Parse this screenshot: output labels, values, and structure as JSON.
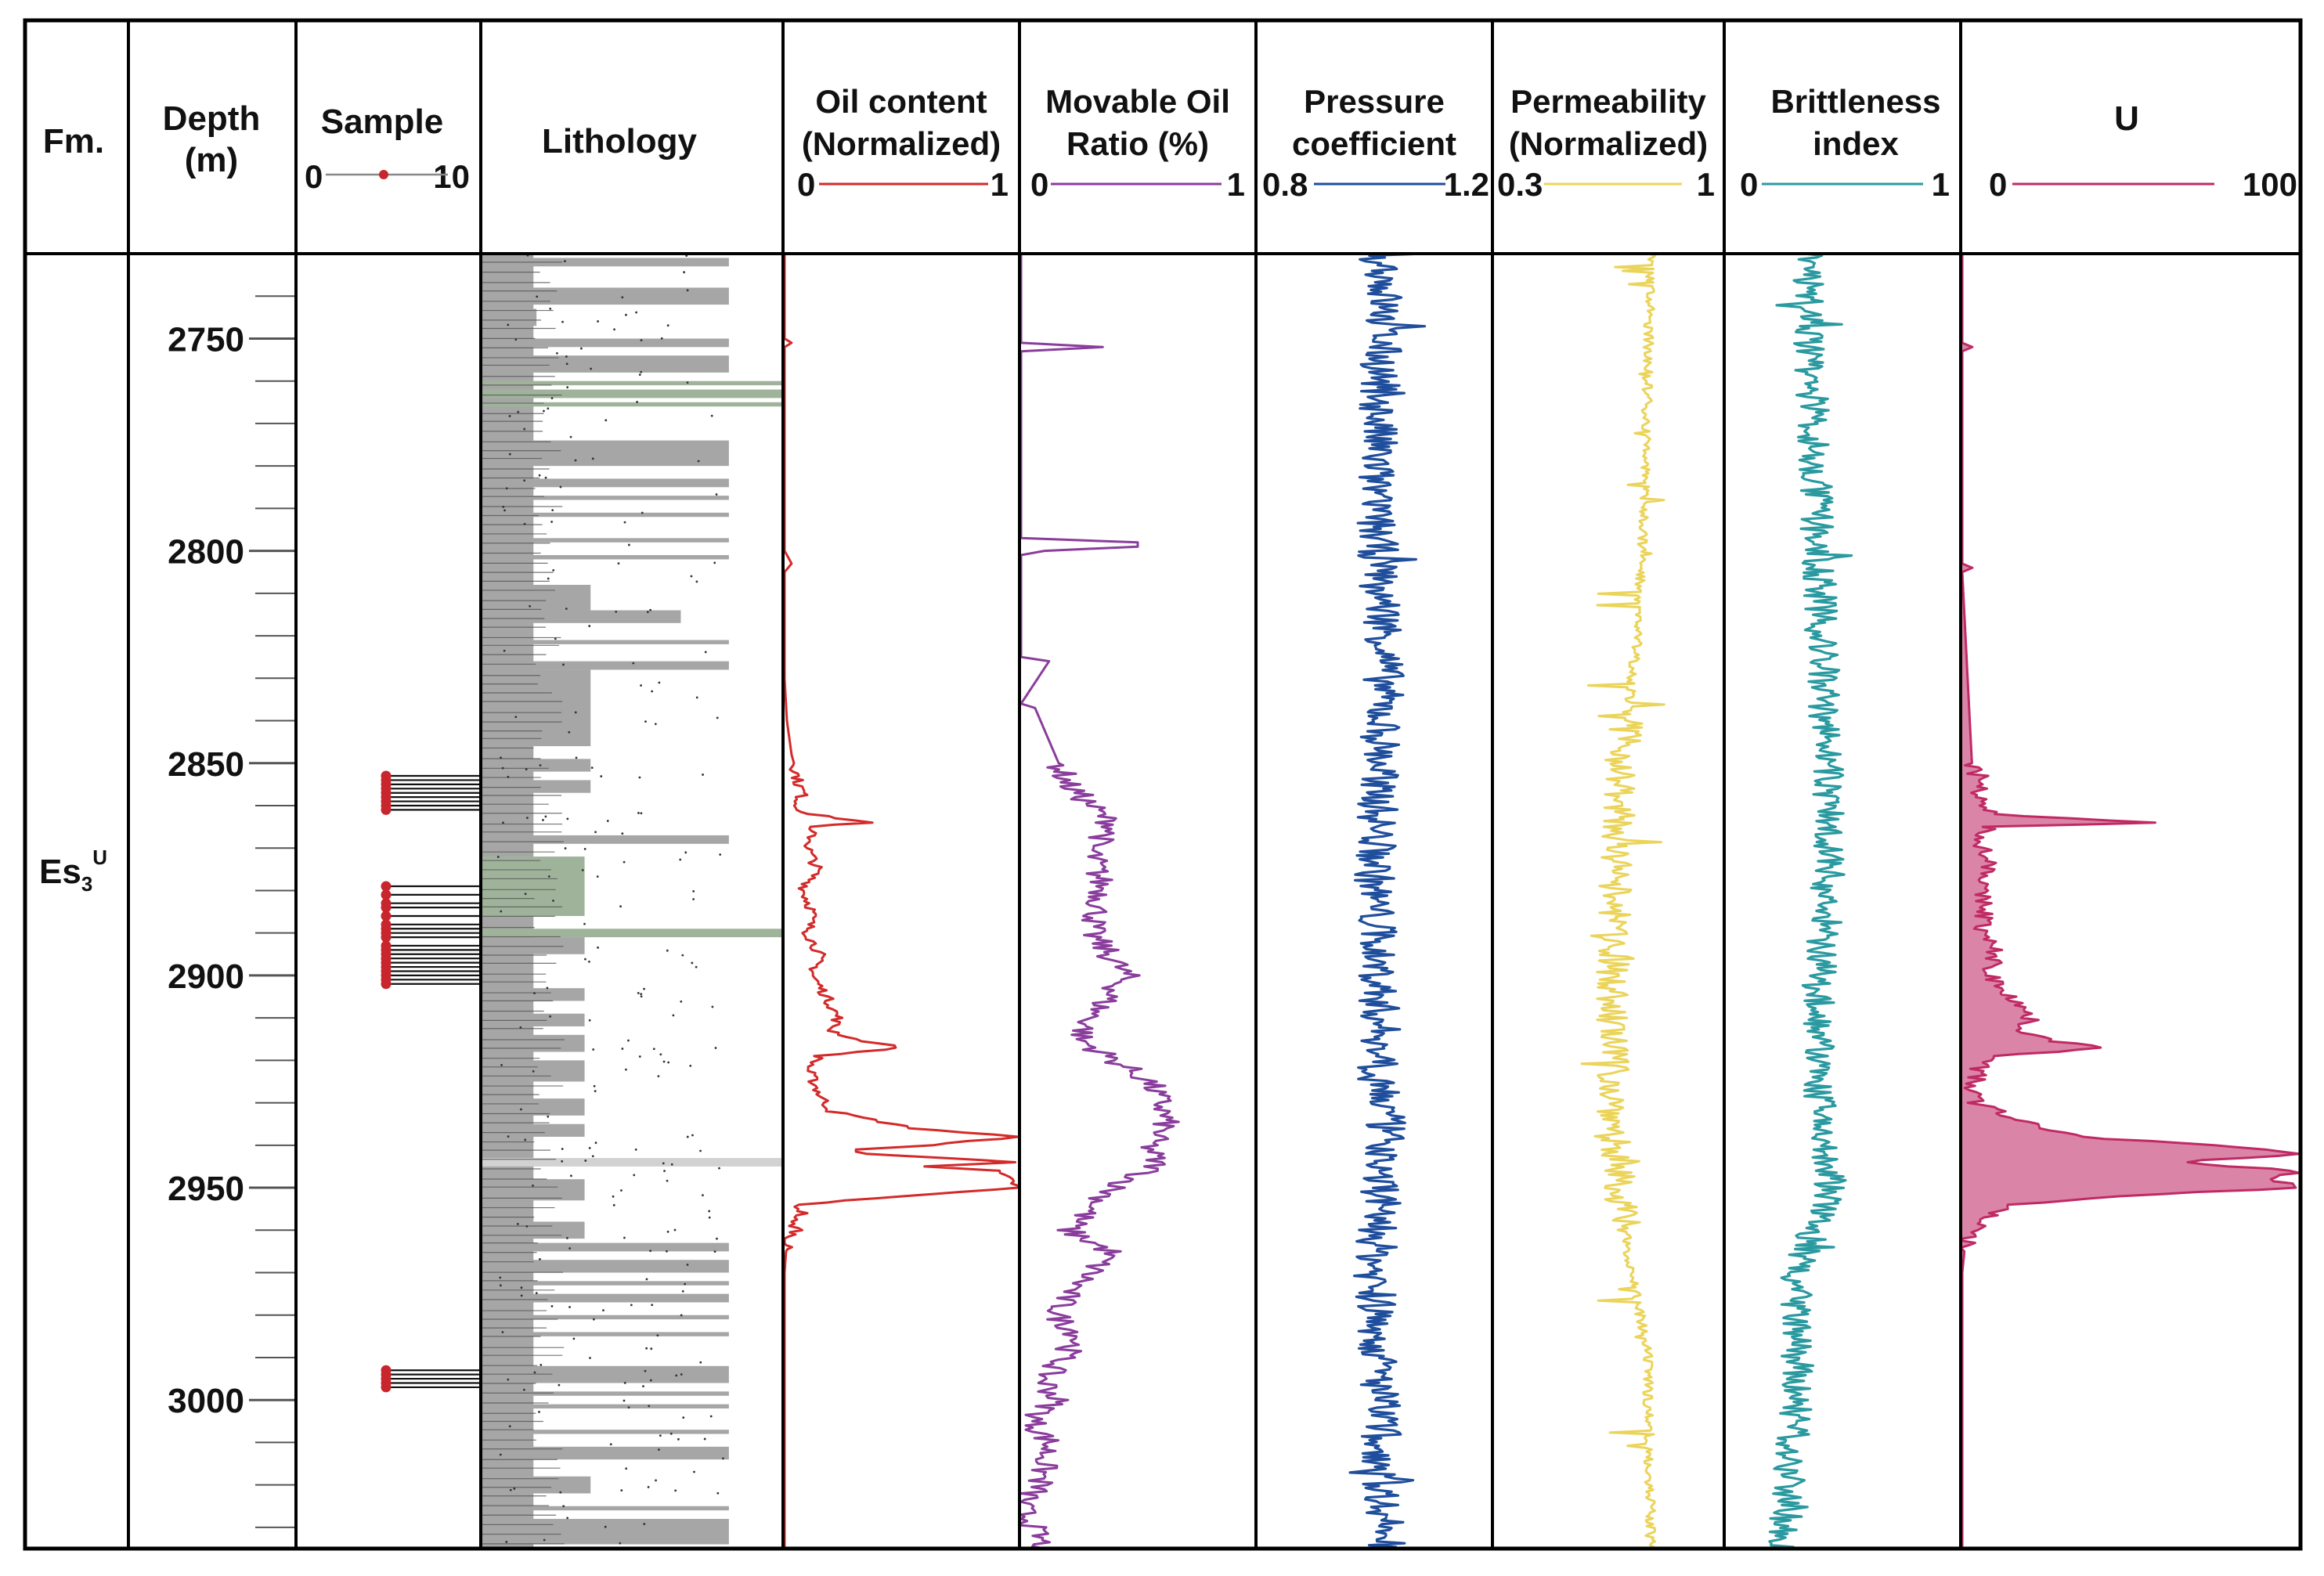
{
  "chart_data": {
    "type": "line",
    "title": "",
    "layout": "well-log",
    "depth_axis": {
      "label_line1": "Depth",
      "label_line2": "(m)",
      "range": [
        2730,
        3035
      ],
      "major_ticks": [
        2750,
        2800,
        2850,
        2900,
        2950,
        3000
      ],
      "major_tick_labels": [
        "2750",
        "2800",
        "2850",
        "2900",
        "2950",
        "3000"
      ],
      "minor_step": 10
    },
    "formation": {
      "header": "Fm.",
      "name": "Es",
      "subscript": "3",
      "superscript": "U"
    },
    "sample_track": {
      "header": "Sample",
      "scale_min": "0",
      "scale_max": "10",
      "marker_color": "#c8262c",
      "depths": [
        2853,
        2854,
        2855,
        2856,
        2857,
        2858,
        2859,
        2860,
        2861,
        2879,
        2881,
        2883,
        2884,
        2886,
        2888,
        2889,
        2890,
        2891,
        2893,
        2894,
        2895,
        2896,
        2897,
        2898,
        2899,
        2900,
        2901,
        2902,
        2993,
        2994,
        2995,
        2996,
        2997
      ]
    },
    "lithology_track": {
      "header": "Lithology",
      "fill_color": "#a6a6a6",
      "green_color": "#9fb39b",
      "intervals": [
        {
          "top": 2731,
          "base": 2733,
          "w": 0.82,
          "kind": "shale"
        },
        {
          "top": 2738,
          "base": 2742,
          "w": 0.82,
          "kind": "shale"
        },
        {
          "top": 2743,
          "base": 2747,
          "w": 0.18,
          "kind": "silt"
        },
        {
          "top": 2750,
          "base": 2752,
          "w": 0.82,
          "kind": "shale"
        },
        {
          "top": 2754,
          "base": 2758,
          "w": 0.82,
          "kind": "shale"
        },
        {
          "top": 2760,
          "base": 2761,
          "w": 1.0,
          "kind": "green"
        },
        {
          "top": 2762,
          "base": 2764,
          "w": 1.0,
          "kind": "green"
        },
        {
          "top": 2765,
          "base": 2766,
          "w": 1.0,
          "kind": "green"
        },
        {
          "top": 2774,
          "base": 2780,
          "w": 0.82,
          "kind": "shale"
        },
        {
          "top": 2783,
          "base": 2785,
          "w": 0.82,
          "kind": "shale"
        },
        {
          "top": 2787,
          "base": 2788,
          "w": 0.82,
          "kind": "shale"
        },
        {
          "top": 2791,
          "base": 2792,
          "w": 0.82,
          "kind": "shale"
        },
        {
          "top": 2797,
          "base": 2798,
          "w": 0.82,
          "kind": "shale"
        },
        {
          "top": 2801,
          "base": 2802,
          "w": 0.82,
          "kind": "shale"
        },
        {
          "top": 2808,
          "base": 2814,
          "w": 0.36,
          "kind": "shale"
        },
        {
          "top": 2814,
          "base": 2817,
          "w": 0.66,
          "kind": "shale"
        },
        {
          "top": 2821,
          "base": 2822,
          "w": 0.82,
          "kind": "shale"
        },
        {
          "top": 2826,
          "base": 2828,
          "w": 0.82,
          "kind": "shale"
        },
        {
          "top": 2828,
          "base": 2846,
          "w": 0.36,
          "kind": "shale"
        },
        {
          "top": 2849,
          "base": 2852,
          "w": 0.36,
          "kind": "shale"
        },
        {
          "top": 2854,
          "base": 2857,
          "w": 0.36,
          "kind": "shale"
        },
        {
          "top": 2867,
          "base": 2869,
          "w": 0.82,
          "kind": "shale"
        },
        {
          "top": 2872,
          "base": 2886,
          "w": 0.34,
          "kind": "green"
        },
        {
          "top": 2889,
          "base": 2891,
          "w": 1.0,
          "kind": "green"
        },
        {
          "top": 2891,
          "base": 2895,
          "w": 0.34,
          "kind": "shale"
        },
        {
          "top": 2903,
          "base": 2906,
          "w": 0.34,
          "kind": "shale"
        },
        {
          "top": 2909,
          "base": 2912,
          "w": 0.34,
          "kind": "shale"
        },
        {
          "top": 2914,
          "base": 2918,
          "w": 0.34,
          "kind": "shale"
        },
        {
          "top": 2920,
          "base": 2925,
          "w": 0.34,
          "kind": "shale"
        },
        {
          "top": 2929,
          "base": 2933,
          "w": 0.34,
          "kind": "shale"
        },
        {
          "top": 2935,
          "base": 2938,
          "w": 0.34,
          "kind": "shale"
        },
        {
          "top": 2943,
          "base": 2945,
          "w": 1.0,
          "kind": "light"
        },
        {
          "top": 2948,
          "base": 2953,
          "w": 0.34,
          "kind": "shale"
        },
        {
          "top": 2958,
          "base": 2962,
          "w": 0.34,
          "kind": "shale"
        },
        {
          "top": 2963,
          "base": 2965,
          "w": 0.82,
          "kind": "shale"
        },
        {
          "top": 2967,
          "base": 2970,
          "w": 0.82,
          "kind": "shale"
        },
        {
          "top": 2972,
          "base": 2973,
          "w": 0.82,
          "kind": "shale"
        },
        {
          "top": 2975,
          "base": 2977,
          "w": 0.82,
          "kind": "shale"
        },
        {
          "top": 2980,
          "base": 2981,
          "w": 0.82,
          "kind": "shale"
        },
        {
          "top": 2984,
          "base": 2985,
          "w": 0.82,
          "kind": "shale"
        },
        {
          "top": 2992,
          "base": 2996,
          "w": 0.82,
          "kind": "shale"
        },
        {
          "top": 2998,
          "base": 2999,
          "w": 0.82,
          "kind": "shale"
        },
        {
          "top": 3001,
          "base": 3002,
          "w": 0.82,
          "kind": "shale"
        },
        {
          "top": 3007,
          "base": 3008,
          "w": 0.82,
          "kind": "shale"
        },
        {
          "top": 3011,
          "base": 3014,
          "w": 0.82,
          "kind": "shale"
        },
        {
          "top": 3018,
          "base": 3022,
          "w": 0.36,
          "kind": "shale"
        },
        {
          "top": 3025,
          "base": 3026,
          "w": 0.82,
          "kind": "shale"
        },
        {
          "top": 3028,
          "base": 3034,
          "w": 0.82,
          "kind": "shale"
        }
      ]
    },
    "series": [
      {
        "name_line1": "Oil content",
        "name_line2": "(Normalized)",
        "min_label": "0",
        "max_label": "1",
        "xlim": [
          0,
          1
        ],
        "color": "#d42a2a",
        "fill": false,
        "style": "oil",
        "depths": [
          2730,
          2750,
          2751,
          2752,
          2800,
          2803,
          2805,
          2815,
          2830,
          2840,
          2848,
          2852,
          2855,
          2857,
          2860,
          2862,
          2864,
          2865,
          2867,
          2870,
          2875,
          2880,
          2885,
          2890,
          2895,
          2900,
          2905,
          2910,
          2913,
          2915,
          2917,
          2919,
          2922,
          2928,
          2932,
          2936,
          2938,
          2940,
          2941,
          2942,
          2944,
          2945,
          2946,
          2948,
          2950,
          2952,
          2954,
          2956,
          2958,
          2960,
          2962,
          2970,
          2985,
          3000,
          3035
        ],
        "values": [
          0,
          0,
          0.03,
          0,
          0,
          0.03,
          0,
          0,
          0,
          0.01,
          0.03,
          0.05,
          0.06,
          0.08,
          0.05,
          0.1,
          0.37,
          0.09,
          0.12,
          0.1,
          0.14,
          0.08,
          0.12,
          0.1,
          0.15,
          0.12,
          0.18,
          0.23,
          0.2,
          0.3,
          0.5,
          0.15,
          0.1,
          0.15,
          0.2,
          0.55,
          1.0,
          0.62,
          0.3,
          0.35,
          1.0,
          0.62,
          0.9,
          0.96,
          1.0,
          0.5,
          0.05,
          0.08,
          0.02,
          0.06,
          0.01,
          0,
          0,
          0,
          0
        ]
      },
      {
        "name_line1": "Movable Oil",
        "name_line2": "Ratio  (%)",
        "min_label": "0",
        "max_label": "1",
        "xlim": [
          0,
          1
        ],
        "color": "#8a3d9c",
        "fill": false,
        "style": "mor",
        "depths": [
          2730,
          2751,
          2752,
          2753,
          2797,
          2798,
          2799,
          2800,
          2801,
          2825,
          2826,
          2836,
          2837,
          2855,
          2860,
          2865,
          2870,
          2880,
          2890,
          2900,
          2910,
          2915,
          2920,
          2925,
          2930,
          2935,
          2940,
          2945,
          2950,
          2955,
          2960,
          2965,
          2970,
          2975,
          2980,
          2985,
          2990,
          2995,
          3000,
          3005,
          3010,
          3015,
          3020,
          3025,
          3030,
          3035
        ],
        "values": [
          0,
          0,
          0.35,
          0,
          0,
          0.5,
          0.5,
          0.1,
          0,
          0,
          0.12,
          0,
          0.06,
          0.2,
          0.3,
          0.4,
          0.3,
          0.35,
          0.3,
          0.45,
          0.3,
          0.25,
          0.4,
          0.55,
          0.6,
          0.62,
          0.55,
          0.58,
          0.4,
          0.3,
          0.2,
          0.38,
          0.3,
          0.2,
          0.15,
          0.25,
          0.18,
          0.1,
          0.15,
          0.05,
          0.12,
          0.1,
          0.08,
          0.0,
          0.05,
          0.1
        ]
      },
      {
        "name_line1": "Pressure",
        "name_line2": "coefficient",
        "min_label": "0.8",
        "max_label": "1.2",
        "xlim": [
          0.8,
          1.2
        ],
        "color": "#1f4e9c",
        "fill": false,
        "style": "pressure",
        "depths": [
          2730,
          2760,
          2790,
          2820,
          2850,
          2880,
          2910,
          2940,
          2970,
          3000,
          3035
        ],
        "values": [
          1.02,
          1.01,
          1.0,
          1.02,
          1.01,
          1.0,
          1.01,
          1.02,
          1.0,
          1.01,
          1.02
        ]
      },
      {
        "name_line1": "Permeability",
        "name_line2": "(Normalized)",
        "min_label": "0.3",
        "max_label": "1",
        "xlim": [
          0.3,
          1
        ],
        "color": "#ebd45a",
        "fill": false,
        "style": "perm",
        "depths": [
          2730,
          2790,
          2820,
          2850,
          2880,
          2910,
          2940,
          2960,
          2990,
          3035
        ],
        "values": [
          0.78,
          0.76,
          0.74,
          0.69,
          0.67,
          0.66,
          0.67,
          0.7,
          0.77,
          0.78
        ]
      },
      {
        "name_line1": "Brittleness",
        "name_line2": "index",
        "min_label": "0",
        "max_label": "1",
        "xlim": [
          0,
          1
        ],
        "color": "#2a9aa0",
        "fill": false,
        "style": "brittle",
        "depths": [
          2730,
          2780,
          2830,
          2870,
          2900,
          2930,
          2950,
          2970,
          3000,
          3035
        ],
        "values": [
          0.35,
          0.38,
          0.42,
          0.45,
          0.4,
          0.4,
          0.45,
          0.3,
          0.3,
          0.25
        ]
      },
      {
        "name_line1": "U",
        "name_line2": "",
        "min_label": "0",
        "max_label": "100",
        "xlim": [
          0,
          100
        ],
        "color": "#c02a64",
        "fill": true,
        "fill_color": "#d47099",
        "style": "u",
        "depths": [
          2730,
          2751,
          2752,
          2753,
          2803,
          2804,
          2805,
          2852,
          2854,
          2856,
          2860,
          2862,
          2864,
          2865,
          2867,
          2870,
          2875,
          2880,
          2885,
          2890,
          2895,
          2900,
          2905,
          2910,
          2913,
          2915,
          2917,
          2919,
          2922,
          2926,
          2930,
          2935,
          2938,
          2940,
          2942,
          2944,
          2945,
          2946,
          2948,
          2950,
          2952,
          2954,
          2957,
          2960,
          2962,
          2970,
          3000,
          3035
        ],
        "values": [
          0,
          0,
          3,
          0,
          0,
          3,
          0,
          3,
          8,
          5,
          4,
          10,
          55,
          8,
          7,
          6,
          9,
          5,
          7,
          6,
          10,
          8,
          15,
          20,
          18,
          25,
          40,
          12,
          5,
          3,
          4,
          20,
          35,
          75,
          100,
          65,
          80,
          100,
          92,
          100,
          45,
          15,
          8,
          3,
          1,
          0,
          0,
          0
        ]
      }
    ]
  }
}
